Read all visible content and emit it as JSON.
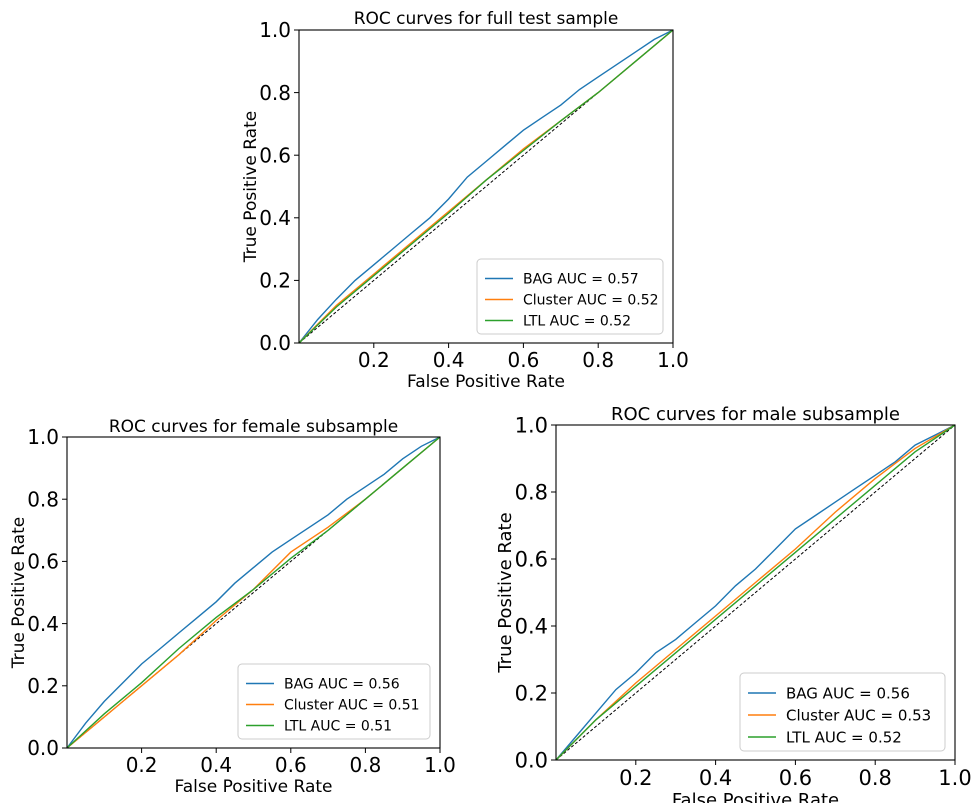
{
  "chart_data": [
    {
      "type": "line",
      "title": "ROC curves for full test sample",
      "xlabel": "False Positive Rate",
      "ylabel": "True Positive Rate",
      "xlim": [
        0,
        1
      ],
      "ylim": [
        0,
        1
      ],
      "xticks": [
        "0.2",
        "0.4",
        "0.6",
        "0.8",
        "1.0"
      ],
      "yticks": [
        "0.0",
        "0.2",
        "0.4",
        "0.6",
        "0.8",
        "1.0"
      ],
      "grid": false,
      "legend_position": "lower-right",
      "reference_line": "diagonal",
      "series": [
        {
          "name": "BAG AUC = 0.57",
          "color": "#1f77b4",
          "x": [
            0,
            0.05,
            0.1,
            0.15,
            0.2,
            0.25,
            0.3,
            0.35,
            0.4,
            0.45,
            0.5,
            0.55,
            0.6,
            0.65,
            0.7,
            0.75,
            0.8,
            0.85,
            0.9,
            0.95,
            1.0
          ],
          "y": [
            0,
            0.075,
            0.14,
            0.2,
            0.25,
            0.3,
            0.35,
            0.4,
            0.46,
            0.53,
            0.58,
            0.63,
            0.68,
            0.72,
            0.76,
            0.81,
            0.85,
            0.89,
            0.93,
            0.97,
            1.0
          ]
        },
        {
          "name": "Cluster AUC = 0.52",
          "color": "#ff7f0e",
          "x": [
            0,
            0.1,
            0.2,
            0.3,
            0.4,
            0.5,
            0.6,
            0.7,
            0.8,
            0.9,
            1.0
          ],
          "y": [
            0,
            0.12,
            0.22,
            0.32,
            0.42,
            0.52,
            0.62,
            0.71,
            0.8,
            0.9,
            1.0
          ]
        },
        {
          "name": "LTL AUC = 0.52",
          "color": "#2ca02c",
          "x": [
            0,
            0.1,
            0.2,
            0.3,
            0.4,
            0.5,
            0.6,
            0.7,
            0.8,
            0.9,
            1.0
          ],
          "y": [
            0,
            0.115,
            0.215,
            0.315,
            0.415,
            0.52,
            0.615,
            0.71,
            0.8,
            0.9,
            1.0
          ]
        }
      ]
    },
    {
      "type": "line",
      "title": "ROC curves for female subsample",
      "xlabel": "False Positive Rate",
      "ylabel": "True Positive Rate",
      "xlim": [
        0,
        1
      ],
      "ylim": [
        0,
        1
      ],
      "xticks": [
        "0.2",
        "0.4",
        "0.6",
        "0.8",
        "1.0"
      ],
      "yticks": [
        "0.0",
        "0.2",
        "0.4",
        "0.6",
        "0.8",
        "1.0"
      ],
      "grid": false,
      "legend_position": "lower-right",
      "reference_line": "diagonal",
      "series": [
        {
          "name": "BAG AUC = 0.56",
          "color": "#1f77b4",
          "x": [
            0,
            0.05,
            0.1,
            0.15,
            0.2,
            0.25,
            0.3,
            0.35,
            0.4,
            0.45,
            0.5,
            0.55,
            0.6,
            0.65,
            0.7,
            0.75,
            0.8,
            0.85,
            0.9,
            0.95,
            1.0
          ],
          "y": [
            0,
            0.08,
            0.15,
            0.21,
            0.27,
            0.32,
            0.37,
            0.42,
            0.47,
            0.53,
            0.58,
            0.63,
            0.67,
            0.71,
            0.75,
            0.8,
            0.84,
            0.88,
            0.93,
            0.97,
            1.0
          ]
        },
        {
          "name": "Cluster AUC = 0.51",
          "color": "#ff7f0e",
          "x": [
            0,
            0.1,
            0.2,
            0.3,
            0.4,
            0.5,
            0.6,
            0.7,
            0.8,
            0.9,
            1.0
          ],
          "y": [
            0,
            0.1,
            0.2,
            0.3,
            0.41,
            0.51,
            0.63,
            0.71,
            0.8,
            0.9,
            1.0
          ]
        },
        {
          "name": "LTL AUC = 0.51",
          "color": "#2ca02c",
          "x": [
            0,
            0.1,
            0.2,
            0.3,
            0.4,
            0.5,
            0.6,
            0.7,
            0.8,
            0.9,
            1.0
          ],
          "y": [
            0,
            0.11,
            0.21,
            0.32,
            0.42,
            0.51,
            0.61,
            0.7,
            0.8,
            0.9,
            1.0
          ]
        }
      ]
    },
    {
      "type": "line",
      "title": "ROC curves for male subsample",
      "xlabel": "False Positive Rate",
      "ylabel": "True Positive Rate",
      "xlim": [
        0,
        1
      ],
      "ylim": [
        0,
        1
      ],
      "xticks": [
        "0.2",
        "0.4",
        "0.6",
        "0.8",
        "1.0"
      ],
      "yticks": [
        "0.0",
        "0.2",
        "0.4",
        "0.6",
        "0.8",
        "1.0"
      ],
      "grid": false,
      "legend_position": "lower-right",
      "reference_line": "diagonal",
      "series": [
        {
          "name": "BAG AUC = 0.56",
          "color": "#1f77b4",
          "x": [
            0,
            0.05,
            0.1,
            0.15,
            0.2,
            0.25,
            0.3,
            0.35,
            0.4,
            0.45,
            0.5,
            0.55,
            0.6,
            0.65,
            0.7,
            0.75,
            0.8,
            0.85,
            0.9,
            0.95,
            1.0
          ],
          "y": [
            0,
            0.07,
            0.14,
            0.21,
            0.26,
            0.32,
            0.36,
            0.41,
            0.46,
            0.52,
            0.57,
            0.63,
            0.69,
            0.73,
            0.77,
            0.81,
            0.85,
            0.89,
            0.94,
            0.97,
            1.0
          ]
        },
        {
          "name": "Cluster AUC = 0.53",
          "color": "#ff7f0e",
          "x": [
            0,
            0.1,
            0.2,
            0.3,
            0.4,
            0.5,
            0.6,
            0.7,
            0.8,
            0.9,
            1.0
          ],
          "y": [
            0,
            0.12,
            0.23,
            0.33,
            0.43,
            0.53,
            0.63,
            0.74,
            0.84,
            0.93,
            1.0
          ]
        },
        {
          "name": "LTL AUC = 0.52",
          "color": "#2ca02c",
          "x": [
            0,
            0.1,
            0.2,
            0.3,
            0.4,
            0.5,
            0.6,
            0.7,
            0.8,
            0.9,
            1.0
          ],
          "y": [
            0,
            0.12,
            0.22,
            0.32,
            0.42,
            0.52,
            0.62,
            0.72,
            0.82,
            0.92,
            1.0
          ]
        }
      ]
    }
  ]
}
